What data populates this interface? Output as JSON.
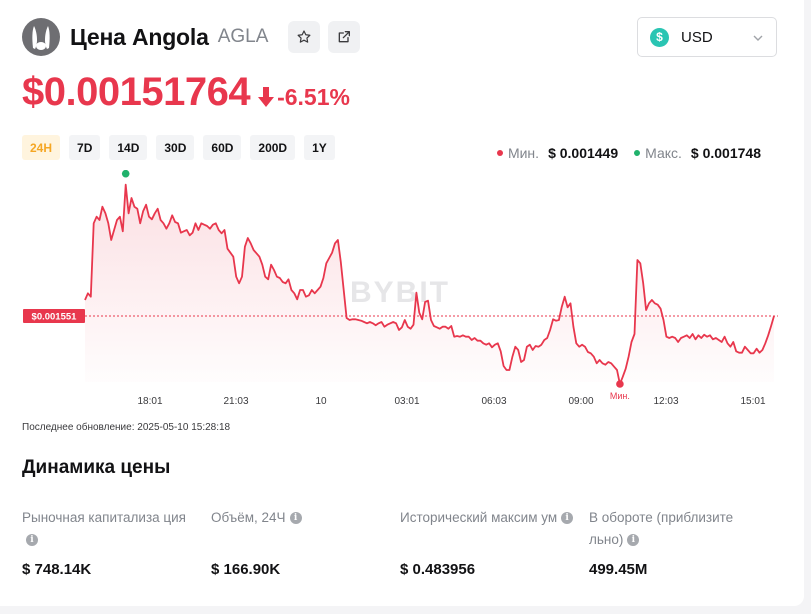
{
  "header": {
    "coin_name": "Цена Angola",
    "ticker": "AGLA",
    "logo_icon": "angola-coin-logo-icon",
    "favorite_icon": "star-icon",
    "share_icon": "external-link-icon"
  },
  "currency": {
    "label": "USD",
    "icon": "dollar-circle-icon",
    "symbol": "$",
    "icon_color": "#2ac5b3"
  },
  "price": {
    "value": "$0.00151764",
    "change": "-6.51%",
    "direction": "down",
    "color": "#e8374d"
  },
  "ranges": {
    "items": [
      "24H",
      "7D",
      "14D",
      "30D",
      "60D",
      "200D",
      "1Y"
    ],
    "active": "24H"
  },
  "minmax": {
    "min_label": "Мин.",
    "min_value": "$ 0.001449",
    "max_label": "Макс.",
    "max_value": "$ 0.001748",
    "min_color": "#e8374d",
    "max_color": "#20b26c"
  },
  "chart_data": {
    "type": "area",
    "x_ticks": [
      "18:01",
      "21:03",
      "10",
      "03:01",
      "06:03",
      "09:00",
      "12:03",
      "15:01"
    ],
    "current_label": "$0.001551",
    "current_value": 0.001551,
    "max_marker_label": "Макс.",
    "min_marker_label": "Мин.",
    "max_value": 0.001748,
    "min_value": 0.001449,
    "y_range": [
      0.00141,
      0.00177
    ],
    "grid": false,
    "line_color": "#e8374d",
    "series": [
      {
        "values": [
          0.001575,
          0.001585,
          0.00158,
          0.00169,
          0.0017,
          0.001695,
          0.001715,
          0.001705,
          0.00169,
          0.001665,
          0.00168,
          0.001695,
          0.0017,
          0.001678,
          0.001748,
          0.001705,
          0.001728,
          0.001715,
          0.001712,
          0.00169,
          0.001708,
          0.001718,
          0.0017,
          0.001696,
          0.001705,
          0.001712,
          0.001695,
          0.00169,
          0.001682,
          0.00169,
          0.001702,
          0.001692,
          0.00169,
          0.001676,
          0.001678,
          0.00168,
          0.001672,
          0.001676,
          0.00169,
          0.00168,
          0.00169,
          0.001688,
          0.001686,
          0.001682,
          0.001688,
          0.00169,
          0.00168,
          0.001675,
          0.00168,
          0.001652,
          0.001646,
          0.00164,
          0.00161,
          0.0016,
          0.00161,
          0.001655,
          0.001668,
          0.00166,
          0.00165,
          0.001645,
          0.00164,
          0.001628,
          0.00161,
          0.001606,
          0.001628,
          0.00162,
          0.00161,
          0.001608,
          0.001602,
          0.0016,
          0.001606,
          0.00159,
          0.001585,
          0.001576,
          0.00159,
          0.00159,
          0.00158,
          0.001582,
          0.00159,
          0.001585,
          0.00159,
          0.001595,
          0.001608,
          0.00163,
          0.001638,
          0.001646,
          0.00166,
          0.001665,
          0.001632,
          0.00159,
          0.001548,
          0.001545,
          0.001546,
          0.001546,
          0.001545,
          0.001544,
          0.001542,
          0.00154,
          0.001542,
          0.00154,
          0.001537,
          0.00154,
          0.001542,
          0.001535,
          0.001538,
          0.00154,
          0.001542,
          0.00154,
          0.00153,
          0.001534,
          0.001545,
          0.001535,
          0.001532,
          0.001538,
          0.001586,
          0.001556,
          0.001546,
          0.001572,
          0.001574,
          0.001545,
          0.001536,
          0.001534,
          0.001532,
          0.001535,
          0.001535,
          0.001532,
          0.001536,
          0.00152,
          0.001521,
          0.00152,
          0.001522,
          0.00152,
          0.00152,
          0.001515,
          0.001518,
          0.001514,
          0.001514,
          0.00151,
          0.001508,
          0.00151,
          0.001504,
          0.001508,
          0.00151,
          0.001498,
          0.001476,
          0.00147,
          0.00147,
          0.00149,
          0.001505,
          0.0015,
          0.001482,
          0.001485,
          0.001505,
          0.001508,
          0.0015,
          0.001506,
          0.001505,
          0.001508,
          0.001515,
          0.001518,
          0.00153,
          0.001546,
          0.001544,
          0.001545,
          0.001565,
          0.00158,
          0.001564,
          0.00157,
          0.001535,
          0.00151,
          0.001505,
          0.001508,
          0.001505,
          0.001497,
          0.001495,
          0.00149,
          0.00148,
          0.001485,
          0.00148,
          0.001478,
          0.001482,
          0.00148,
          0.001475,
          0.00147,
          0.001449,
          0.00146,
          0.001472,
          0.00149,
          0.001512,
          0.001524,
          0.001635,
          0.00163,
          0.0016,
          0.00156,
          0.00157,
          0.001575,
          0.00157,
          0.001568,
          0.001562,
          0.001545,
          0.00152,
          0.001518,
          0.00152,
          0.001518,
          0.001512,
          0.001518,
          0.00152,
          0.001522,
          0.001518,
          0.001524,
          0.001516,
          0.001522,
          0.001518,
          0.001523,
          0.00152,
          0.001522,
          0.001516,
          0.001518,
          0.001515,
          0.001512,
          0.00152,
          0.00151,
          0.001505,
          0.001512,
          0.001498,
          0.001496,
          0.001496,
          0.001505,
          0.0015,
          0.001495,
          0.001495,
          0.001502,
          0.001496,
          0.0015,
          0.00151,
          0.001522,
          0.001536,
          0.001551
        ]
      }
    ]
  },
  "watermark": "BYBIT",
  "updated": "Последнее обновление: 2025-05-10 15:28:18",
  "dynamics": {
    "title": "Динамика цены",
    "info_icon": "info-icon",
    "stats": [
      {
        "label": "Рыночная капитализа ция",
        "value": "$ 748.14K"
      },
      {
        "label": "Объём, 24Ч",
        "value": "$ 166.90K"
      },
      {
        "label": "Исторический максим ум",
        "value": "$ 0.483956"
      },
      {
        "label": "В обороте (приблизите льно)",
        "value": "499.45M"
      }
    ]
  }
}
